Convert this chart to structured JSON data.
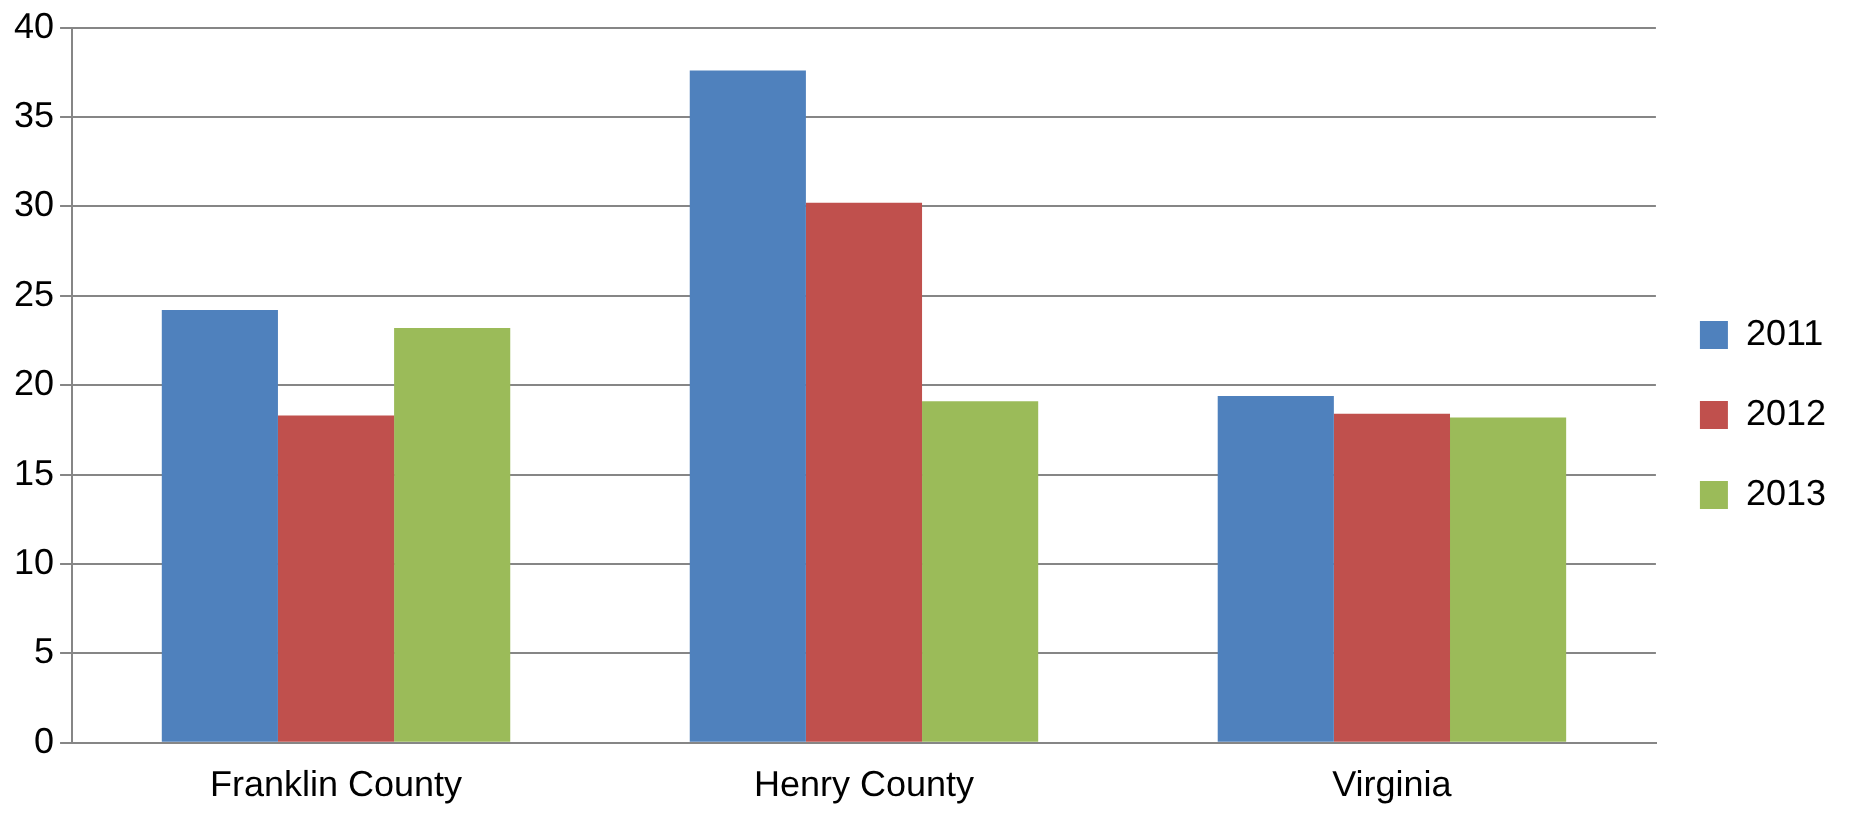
{
  "chart_data": {
    "type": "bar",
    "categories": [
      "Franklin County",
      "Henry County",
      "Virginia"
    ],
    "series": [
      {
        "name": "2011",
        "color": "#4f81bd",
        "values": [
          24.2,
          37.6,
          19.4
        ]
      },
      {
        "name": "2012",
        "color": "#c0504d",
        "values": [
          18.3,
          30.2,
          18.4
        ]
      },
      {
        "name": "2013",
        "color": "#9bbb59",
        "values": [
          23.2,
          19.1,
          18.2
        ]
      }
    ],
    "ylim": [
      0,
      40
    ],
    "yticks": [
      0,
      5,
      10,
      15,
      20,
      25,
      30,
      35,
      40
    ],
    "grid": "y",
    "legend": "right"
  }
}
